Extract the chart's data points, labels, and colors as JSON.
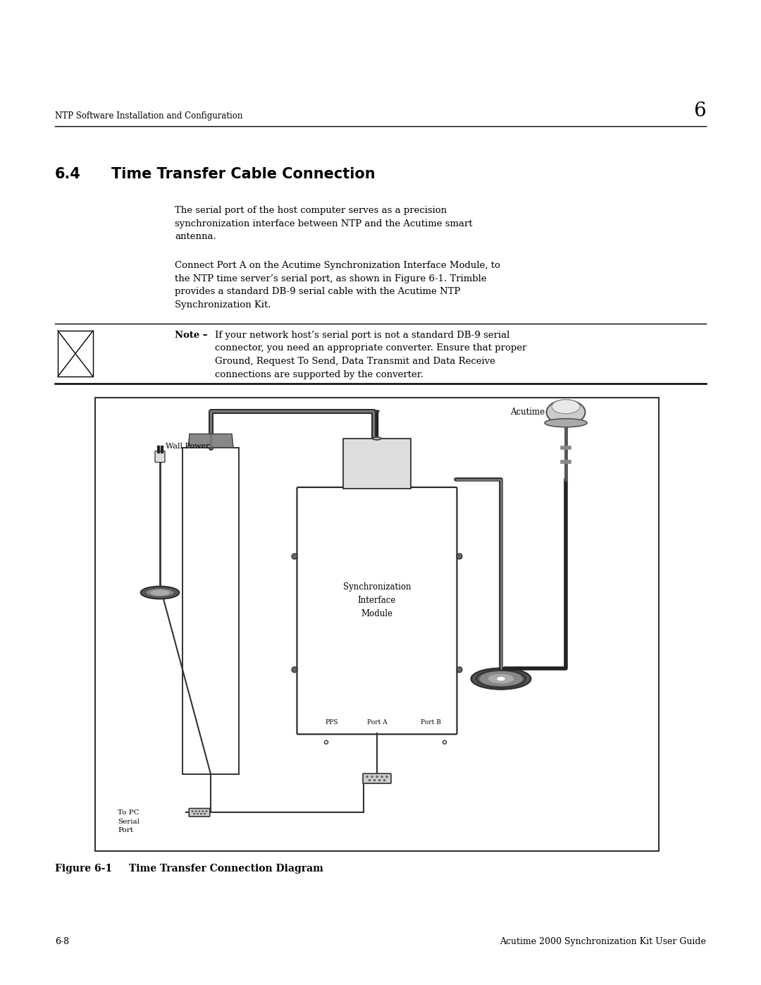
{
  "bg_color": "#ffffff",
  "page_width": 10.8,
  "page_height": 13.97,
  "header_text": "NTP Software Installation and Configuration",
  "header_number": "6",
  "section_title_num": "6.4",
  "section_title_rest": "Time Transfer Cable Connection",
  "para1": "The serial port of the host computer serves as a precision\nsynchronization interface between NTP and the Acutime smart\nantenna.",
  "para2": "Connect Port A on the Acutime Synchronization Interface Module, to\nthe NTP time server’s serial port, as shown in Figure 6-1. Trimble\nprovides a standard DB-9 serial cable with the Acutime NTP\nSynchronization Kit.",
  "note_text": "If your network host’s serial port is not a standard DB-9 serial\nconnector, you need an appropriate converter. Ensure that proper\nGround, Request To Send, Data Transmit and Data Receive\nconnections are supported by the converter.",
  "fig_num": "Figure 6-1",
  "fig_caption": "Time Transfer Connection Diagram",
  "footer_left": "6-8",
  "footer_right": "Acutime 2000 Synchronization Kit User Guide",
  "wall_power_label": "Wall Power",
  "acutime_label": "Acutime",
  "sync_label": "Synchronization\nInterface\nModule",
  "pps_label": "PPS",
  "porta_label": "Port A",
  "portb_label": "Port B",
  "topc_label": "To PC\nSerial\nPort"
}
